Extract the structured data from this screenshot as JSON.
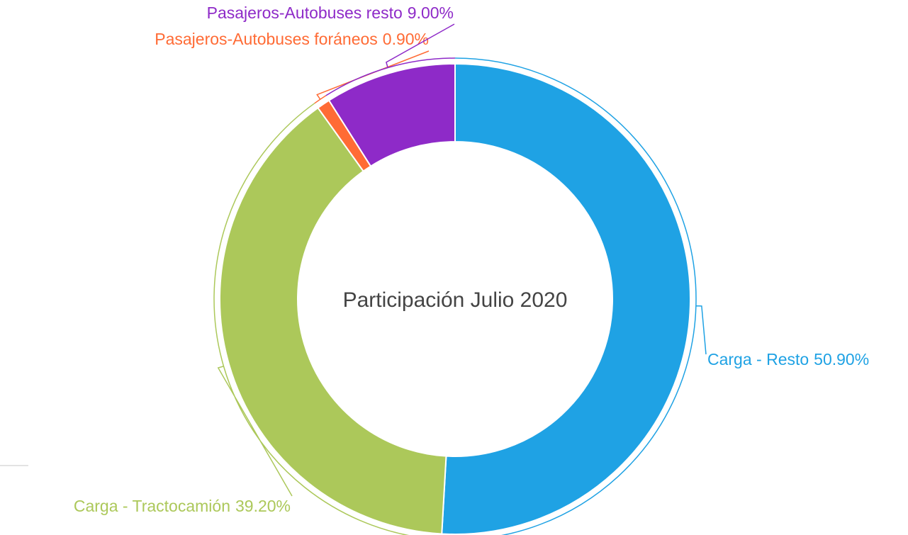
{
  "chart_data": {
    "type": "donut",
    "title": "Participación Julio 2020",
    "categories": [
      "Carga - Resto",
      "Carga - Tractocamión",
      "Pasajeros-Autobuses foráneos",
      "Pasajeros-Autobuses resto"
    ],
    "values": [
      50.9,
      39.2,
      0.9,
      9.0
    ],
    "value_labels": [
      "50.90%",
      "39.20%",
      "0.90%",
      "9.00%"
    ],
    "colors": [
      "#1fa2e4",
      "#acc85a",
      "#ff6b35",
      "#8e2ac8"
    ]
  }
}
